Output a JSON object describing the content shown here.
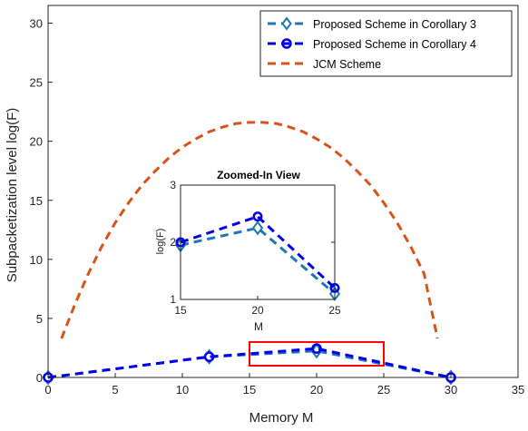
{
  "chart_data": [
    {
      "type": "line",
      "title": "",
      "xlabel": "Memory M",
      "ylabel": "Subpacketization level log(F)",
      "xlim": [
        0,
        35
      ],
      "ylim": [
        0,
        31.5
      ],
      "xticks": [
        "0",
        "5",
        "10",
        "15",
        "20",
        "25",
        "30",
        "35"
      ],
      "yticks": [
        "0",
        "5",
        "10",
        "15",
        "20",
        "25",
        "30"
      ],
      "grid": true,
      "legend_position": "top-right",
      "series": [
        {
          "name": "Proposed Scheme in Corollary 3",
          "color": "#1f77b4",
          "marker": "diamond",
          "dash": true,
          "x": [
            0,
            12,
            20,
            30
          ],
          "y": [
            0,
            1.75,
            2.25,
            0
          ]
        },
        {
          "name": "Proposed Scheme in Corollary 4",
          "color": "#0000ee",
          "marker": "circle",
          "dash": true,
          "x": [
            0,
            12,
            20,
            30
          ],
          "y": [
            0,
            1.75,
            2.45,
            0
          ]
        },
        {
          "name": "JCM Scheme",
          "color": "#d95319",
          "marker": "none",
          "dash": true,
          "x": [
            1,
            2,
            3,
            4,
            5,
            6,
            7,
            8,
            9,
            10,
            11,
            12,
            13,
            14,
            15,
            16,
            17,
            18,
            19,
            20,
            21,
            22,
            23,
            24,
            25,
            26,
            27,
            28,
            29
          ],
          "y": [
            3.3,
            6.2,
            8.8,
            11.1,
            13.1,
            14.8,
            16.3,
            17.5,
            18.6,
            19.5,
            20.2,
            20.8,
            21.2,
            21.5,
            21.6,
            21.6,
            21.5,
            21.2,
            20.8,
            20.2,
            19.5,
            18.6,
            17.5,
            16.3,
            14.8,
            13.1,
            11.1,
            8.8,
            3.3
          ]
        }
      ],
      "annotation": {
        "type": "zoom-box",
        "x_range": [
          15,
          25
        ],
        "y_range": [
          1,
          3
        ],
        "color": "#ff0000"
      }
    },
    {
      "type": "line",
      "title": "Zoomed-In View",
      "xlabel": "M",
      "ylabel": "log(F)",
      "xlim": [
        15,
        25
      ],
      "ylim": [
        1,
        3
      ],
      "xticks": [
        "15",
        "20",
        "25"
      ],
      "yticks": [
        "1",
        "2",
        "3"
      ],
      "grid": false,
      "series": [
        {
          "name": "Proposed Scheme in Corollary 3",
          "color": "#1f77b4",
          "marker": "diamond",
          "x": [
            15,
            20,
            25
          ],
          "y": [
            1.95,
            2.25,
            1.1
          ]
        },
        {
          "name": "Proposed Scheme in Corollary 4",
          "color": "#0000ee",
          "marker": "circle",
          "x": [
            15,
            20,
            25
          ],
          "y": [
            2.0,
            2.45,
            1.2
          ]
        }
      ]
    }
  ]
}
